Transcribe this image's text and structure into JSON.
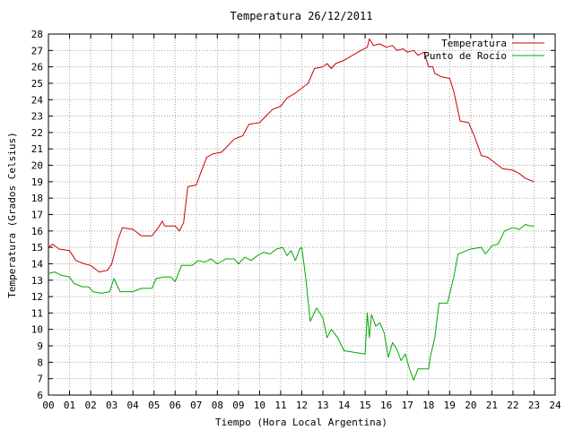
{
  "chart_data": {
    "type": "line",
    "title": "Temperatura 26/12/2011",
    "xlabel": "Tiempo (Hora Local Argentina)",
    "ylabel": "Temperatura (Grados Celsius)",
    "xlim": [
      0,
      24
    ],
    "ylim": [
      6,
      28
    ],
    "x_ticks": [
      "00",
      "01",
      "02",
      "03",
      "04",
      "05",
      "06",
      "07",
      "08",
      "09",
      "10",
      "11",
      "12",
      "13",
      "14",
      "15",
      "16",
      "17",
      "18",
      "19",
      "20",
      "21",
      "22",
      "23",
      "24"
    ],
    "y_ticks": [
      "6",
      "7",
      "8",
      "9",
      "10",
      "11",
      "12",
      "13",
      "14",
      "15",
      "16",
      "17",
      "18",
      "19",
      "20",
      "21",
      "22",
      "23",
      "24",
      "25",
      "26",
      "27",
      "28"
    ],
    "grid": true,
    "legend_position": "top-right",
    "series": [
      {
        "name": "Temperatura",
        "color": "#cc0000",
        "points": [
          [
            0.0,
            15.0
          ],
          [
            0.2,
            15.2
          ],
          [
            0.5,
            14.9
          ],
          [
            1.0,
            14.8
          ],
          [
            1.3,
            14.2
          ],
          [
            1.7,
            14.0
          ],
          [
            2.0,
            13.9
          ],
          [
            2.4,
            13.5
          ],
          [
            2.8,
            13.6
          ],
          [
            3.0,
            14.0
          ],
          [
            3.3,
            15.5
          ],
          [
            3.5,
            16.2
          ],
          [
            4.0,
            16.1
          ],
          [
            4.4,
            15.7
          ],
          [
            4.9,
            15.7
          ],
          [
            5.2,
            16.2
          ],
          [
            5.4,
            16.6
          ],
          [
            5.5,
            16.3
          ],
          [
            6.0,
            16.3
          ],
          [
            6.2,
            16.0
          ],
          [
            6.4,
            16.5
          ],
          [
            6.6,
            18.7
          ],
          [
            7.0,
            18.8
          ],
          [
            7.2,
            19.5
          ],
          [
            7.5,
            20.5
          ],
          [
            7.8,
            20.7
          ],
          [
            8.2,
            20.8
          ],
          [
            8.5,
            21.2
          ],
          [
            8.8,
            21.6
          ],
          [
            9.2,
            21.8
          ],
          [
            9.5,
            22.5
          ],
          [
            10.0,
            22.6
          ],
          [
            10.3,
            23.0
          ],
          [
            10.6,
            23.4
          ],
          [
            11.0,
            23.6
          ],
          [
            11.3,
            24.1
          ],
          [
            11.7,
            24.4
          ],
          [
            12.0,
            24.7
          ],
          [
            12.3,
            25.0
          ],
          [
            12.6,
            25.9
          ],
          [
            13.0,
            26.0
          ],
          [
            13.2,
            26.2
          ],
          [
            13.4,
            25.9
          ],
          [
            13.6,
            26.2
          ],
          [
            14.0,
            26.4
          ],
          [
            14.4,
            26.7
          ],
          [
            14.8,
            27.0
          ],
          [
            15.1,
            27.2
          ],
          [
            15.2,
            27.7
          ],
          [
            15.4,
            27.3
          ],
          [
            15.7,
            27.4
          ],
          [
            16.0,
            27.2
          ],
          [
            16.3,
            27.3
          ],
          [
            16.5,
            27.0
          ],
          [
            16.8,
            27.1
          ],
          [
            17.0,
            26.9
          ],
          [
            17.3,
            27.0
          ],
          [
            17.5,
            26.7
          ],
          [
            17.8,
            26.9
          ],
          [
            18.0,
            26.0
          ],
          [
            18.2,
            26.0
          ],
          [
            18.3,
            25.6
          ],
          [
            18.6,
            25.4
          ],
          [
            19.0,
            25.3
          ],
          [
            19.2,
            24.5
          ],
          [
            19.5,
            22.7
          ],
          [
            19.9,
            22.6
          ],
          [
            20.2,
            21.7
          ],
          [
            20.5,
            20.6
          ],
          [
            20.8,
            20.5
          ],
          [
            21.0,
            20.3
          ],
          [
            21.3,
            20.0
          ],
          [
            21.5,
            19.8
          ],
          [
            22.0,
            19.7
          ],
          [
            22.3,
            19.5
          ],
          [
            22.6,
            19.2
          ],
          [
            23.0,
            19.0
          ]
        ]
      },
      {
        "name": "Punto de Rocío",
        "color": "#00aa00",
        "points": [
          [
            0.0,
            13.4
          ],
          [
            0.3,
            13.5
          ],
          [
            0.6,
            13.3
          ],
          [
            1.0,
            13.2
          ],
          [
            1.2,
            12.8
          ],
          [
            1.6,
            12.6
          ],
          [
            1.9,
            12.6
          ],
          [
            2.1,
            12.3
          ],
          [
            2.5,
            12.2
          ],
          [
            2.9,
            12.3
          ],
          [
            3.1,
            13.1
          ],
          [
            3.4,
            12.3
          ],
          [
            4.0,
            12.3
          ],
          [
            4.4,
            12.5
          ],
          [
            4.9,
            12.5
          ],
          [
            5.1,
            13.1
          ],
          [
            5.5,
            13.2
          ],
          [
            5.8,
            13.2
          ],
          [
            6.0,
            12.9
          ],
          [
            6.3,
            13.9
          ],
          [
            6.8,
            13.9
          ],
          [
            7.1,
            14.2
          ],
          [
            7.4,
            14.1
          ],
          [
            7.7,
            14.3
          ],
          [
            8.0,
            14.0
          ],
          [
            8.4,
            14.3
          ],
          [
            8.8,
            14.3
          ],
          [
            9.0,
            14.0
          ],
          [
            9.3,
            14.4
          ],
          [
            9.6,
            14.2
          ],
          [
            9.9,
            14.5
          ],
          [
            10.2,
            14.7
          ],
          [
            10.5,
            14.6
          ],
          [
            10.8,
            14.9
          ],
          [
            11.1,
            15.0
          ],
          [
            11.3,
            14.5
          ],
          [
            11.5,
            14.8
          ],
          [
            11.7,
            14.2
          ],
          [
            11.9,
            14.9
          ],
          [
            12.0,
            15.0
          ],
          [
            12.2,
            13.0
          ],
          [
            12.4,
            10.5
          ],
          [
            12.7,
            11.3
          ],
          [
            13.0,
            10.7
          ],
          [
            13.2,
            9.5
          ],
          [
            13.4,
            10.0
          ],
          [
            13.7,
            9.5
          ],
          [
            14.0,
            8.7
          ],
          [
            14.5,
            8.6
          ],
          [
            15.0,
            8.5
          ],
          [
            15.1,
            11.0
          ],
          [
            15.2,
            9.5
          ],
          [
            15.3,
            10.9
          ],
          [
            15.5,
            10.2
          ],
          [
            15.7,
            10.4
          ],
          [
            15.9,
            9.8
          ],
          [
            16.1,
            8.3
          ],
          [
            16.3,
            9.2
          ],
          [
            16.5,
            8.8
          ],
          [
            16.7,
            8.1
          ],
          [
            16.9,
            8.5
          ],
          [
            17.1,
            7.6
          ],
          [
            17.3,
            6.9
          ],
          [
            17.5,
            7.6
          ],
          [
            18.0,
            7.6
          ],
          [
            18.1,
            8.4
          ],
          [
            18.3,
            9.5
          ],
          [
            18.5,
            11.6
          ],
          [
            18.9,
            11.6
          ],
          [
            19.2,
            13.2
          ],
          [
            19.4,
            14.6
          ],
          [
            19.8,
            14.8
          ],
          [
            20.0,
            14.9
          ],
          [
            20.5,
            15.0
          ],
          [
            20.7,
            14.6
          ],
          [
            21.0,
            15.1
          ],
          [
            21.3,
            15.2
          ],
          [
            21.6,
            16.0
          ],
          [
            22.0,
            16.2
          ],
          [
            22.3,
            16.1
          ],
          [
            22.6,
            16.4
          ],
          [
            22.8,
            16.3
          ],
          [
            23.0,
            16.3
          ]
        ]
      }
    ]
  }
}
